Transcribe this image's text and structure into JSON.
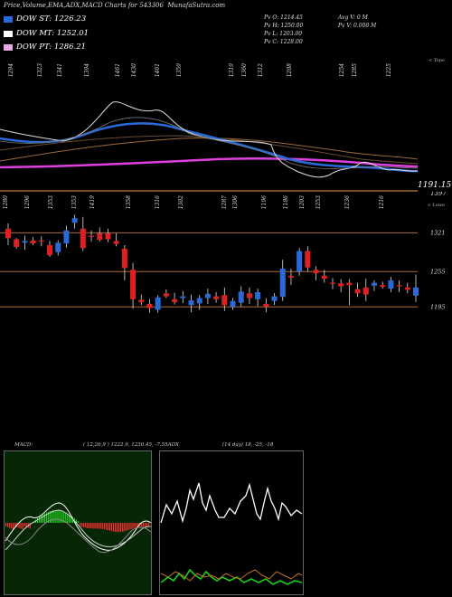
{
  "header": {
    "title": "Price,Volume,EMA,ADX,MACD Charts for 543306",
    "site": "MunafaSutra.com"
  },
  "legend": [
    {
      "label": "DOW ST: 1226.23",
      "color": "#2a6ad8"
    },
    {
      "label": "DOW MT: 1252.01",
      "color": "#ffffff"
    },
    {
      "label": "DOW PT: 1286.21",
      "color": "#e6a8e6"
    }
  ],
  "stats": {
    "pv_o": "Pv   O: 1214.45",
    "pv_h": "Pv   H: 1250.00",
    "pv_l": "Pv   L: 1203.00",
    "pv_c": "Pv   C: 1228.00",
    "avg_v": "Avg V: 0   M",
    "pv_v": "Pv   V: 0.008 M"
  },
  "top_chart": {
    "top_labels": [
      "1294",
      "1323",
      "1341",
      "1394",
      "1461",
      "1430",
      "1461",
      "1359",
      "1319",
      "1360",
      "1312",
      "1208",
      "1254",
      "1285",
      "1225"
    ],
    "right_label": "1191.15",
    "right_tag": "< Topo"
  },
  "bottom_chart": {
    "top_labels": [
      "1280",
      "1296",
      "1353",
      "1353",
      "1419",
      "1358",
      "1316",
      "1302",
      "1287",
      "1306",
      "1196",
      "1186",
      "1203",
      "1253",
      "1236",
      "1216"
    ],
    "right_top": "1397",
    "right_tag": "< Lowo",
    "level_labels": [
      "1321",
      "1255",
      "1195"
    ]
  },
  "indicators": {
    "macd_label": "MACD:",
    "macd_values": "( 12,26,9 ) 1222.9,  1230.45,  -7.55ADX",
    "adx_values": "(14  day) 18,  -25,  -18"
  },
  "chart_data": {
    "type": "candlestick",
    "levels": [
      1321,
      1255,
      1195
    ],
    "candles": [
      {
        "o": 1328,
        "h": 1337,
        "l": 1300,
        "c": 1312
      },
      {
        "o": 1310,
        "h": 1312,
        "l": 1294,
        "c": 1297
      },
      {
        "o": 1304,
        "h": 1316,
        "l": 1292,
        "c": 1307
      },
      {
        "o": 1308,
        "h": 1314,
        "l": 1300,
        "c": 1303
      },
      {
        "o": 1308,
        "h": 1315,
        "l": 1298,
        "c": 1306
      },
      {
        "o": 1300,
        "h": 1307,
        "l": 1280,
        "c": 1283
      },
      {
        "o": 1288,
        "h": 1308,
        "l": 1282,
        "c": 1304
      },
      {
        "o": 1303,
        "h": 1333,
        "l": 1296,
        "c": 1325
      },
      {
        "o": 1338,
        "h": 1352,
        "l": 1328,
        "c": 1346
      },
      {
        "o": 1328,
        "h": 1348,
        "l": 1290,
        "c": 1295
      },
      {
        "o": 1316,
        "h": 1325,
        "l": 1306,
        "c": 1314
      },
      {
        "o": 1320,
        "h": 1330,
        "l": 1306,
        "c": 1309
      },
      {
        "o": 1320,
        "h": 1328,
        "l": 1305,
        "c": 1310
      },
      {
        "o": 1307,
        "h": 1320,
        "l": 1298,
        "c": 1302
      },
      {
        "o": 1294,
        "h": 1300,
        "l": 1240,
        "c": 1261
      },
      {
        "o": 1258,
        "h": 1270,
        "l": 1192,
        "c": 1208
      },
      {
        "o": 1207,
        "h": 1216,
        "l": 1198,
        "c": 1203
      },
      {
        "o": 1200,
        "h": 1208,
        "l": 1185,
        "c": 1193
      },
      {
        "o": 1190,
        "h": 1215,
        "l": 1185,
        "c": 1211
      },
      {
        "o": 1218,
        "h": 1225,
        "l": 1210,
        "c": 1213
      },
      {
        "o": 1208,
        "h": 1219,
        "l": 1199,
        "c": 1203
      },
      {
        "o": 1210,
        "h": 1222,
        "l": 1201,
        "c": 1213
      },
      {
        "o": 1198,
        "h": 1216,
        "l": 1186,
        "c": 1206
      },
      {
        "o": 1201,
        "h": 1215,
        "l": 1190,
        "c": 1210
      },
      {
        "o": 1210,
        "h": 1226,
        "l": 1200,
        "c": 1217
      },
      {
        "o": 1213,
        "h": 1220,
        "l": 1202,
        "c": 1208
      },
      {
        "o": 1215,
        "h": 1228,
        "l": 1188,
        "c": 1198
      },
      {
        "o": 1195,
        "h": 1210,
        "l": 1190,
        "c": 1205
      },
      {
        "o": 1202,
        "h": 1230,
        "l": 1195,
        "c": 1221
      },
      {
        "o": 1218,
        "h": 1228,
        "l": 1200,
        "c": 1210
      },
      {
        "o": 1208,
        "h": 1226,
        "l": 1196,
        "c": 1220
      },
      {
        "o": 1200,
        "h": 1210,
        "l": 1186,
        "c": 1195
      },
      {
        "o": 1205,
        "h": 1218,
        "l": 1198,
        "c": 1213
      },
      {
        "o": 1212,
        "h": 1275,
        "l": 1205,
        "c": 1260
      },
      {
        "o": 1248,
        "h": 1260,
        "l": 1232,
        "c": 1245
      },
      {
        "o": 1255,
        "h": 1295,
        "l": 1248,
        "c": 1290
      },
      {
        "o": 1290,
        "h": 1298,
        "l": 1255,
        "c": 1262
      },
      {
        "o": 1258,
        "h": 1264,
        "l": 1240,
        "c": 1252
      },
      {
        "o": 1248,
        "h": 1258,
        "l": 1236,
        "c": 1243
      },
      {
        "o": 1236,
        "h": 1244,
        "l": 1225,
        "c": 1234
      },
      {
        "o": 1235,
        "h": 1242,
        "l": 1220,
        "c": 1230
      },
      {
        "o": 1236,
        "h": 1242,
        "l": 1198,
        "c": 1232
      },
      {
        "o": 1225,
        "h": 1236,
        "l": 1212,
        "c": 1218
      },
      {
        "o": 1228,
        "h": 1243,
        "l": 1205,
        "c": 1216
      },
      {
        "o": 1231,
        "h": 1240,
        "l": 1222,
        "c": 1236
      },
      {
        "o": 1232,
        "h": 1238,
        "l": 1226,
        "c": 1229
      },
      {
        "o": 1226,
        "h": 1246,
        "l": 1220,
        "c": 1240
      },
      {
        "o": 1232,
        "h": 1240,
        "l": 1220,
        "c": 1230
      },
      {
        "o": 1228,
        "h": 1236,
        "l": 1218,
        "c": 1224
      },
      {
        "o": 1214,
        "h": 1250,
        "l": 1203,
        "c": 1228
      }
    ]
  }
}
